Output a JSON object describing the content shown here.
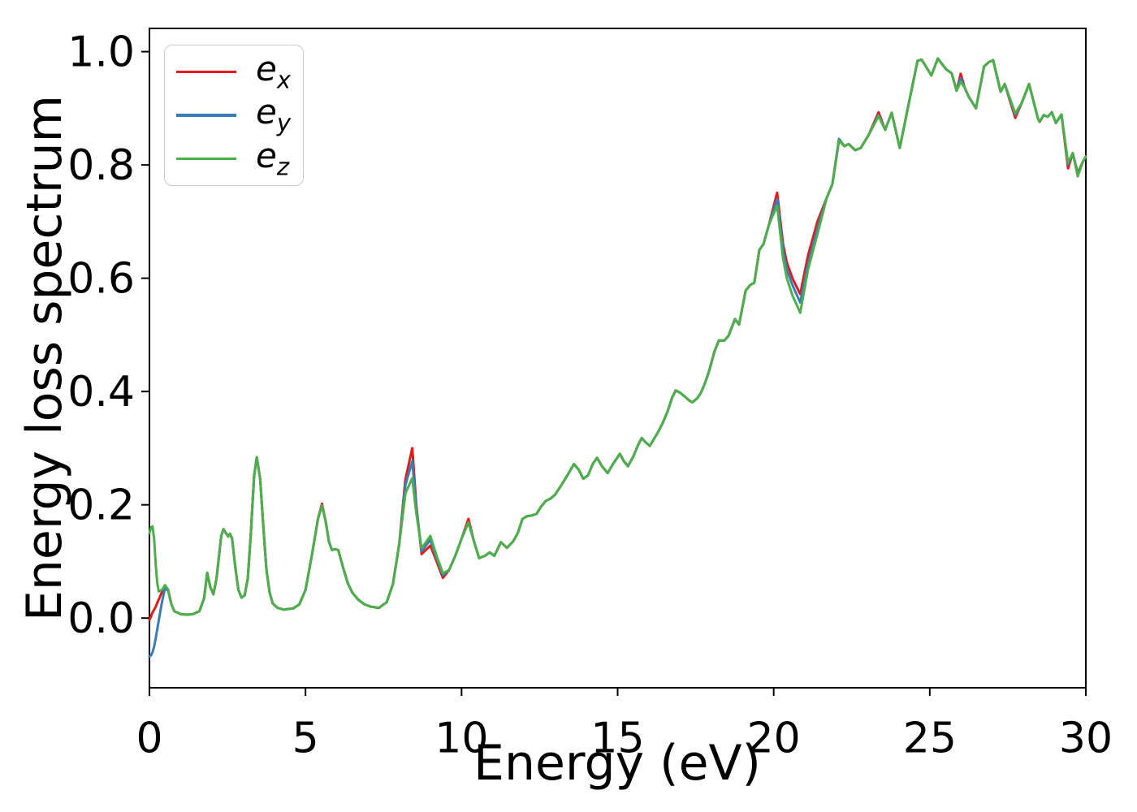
{
  "figure_title": "",
  "chart_data": {
    "type": "line",
    "title": "",
    "xlabel": "Energy (eV)",
    "ylabel": "Energy loss spectrum",
    "xlim": [
      0,
      30
    ],
    "ylim": [
      -0.123,
      1.041
    ],
    "x_ticks": [
      0,
      5,
      10,
      15,
      20,
      25,
      30
    ],
    "y_ticks": [
      0.0,
      0.2,
      0.4,
      0.6,
      0.8,
      1.0
    ],
    "grid": false,
    "legend": {
      "position": "upper-left",
      "entries": [
        {
          "name": "e_x",
          "base": "e",
          "sub": "x"
        },
        {
          "name": "e_y",
          "base": "e",
          "sub": "y"
        },
        {
          "name": "e_z",
          "base": "e",
          "sub": "z"
        }
      ]
    },
    "x": [
      0,
      0.05,
      0.1,
      0.15,
      0.2,
      0.25,
      0.3,
      0.4,
      0.5,
      0.6,
      0.7,
      0.8,
      1,
      1.2,
      1.4,
      1.6,
      1.75,
      1.85,
      1.95,
      2.05,
      2.15,
      2.3,
      2.37,
      2.45,
      2.52,
      2.58,
      2.65,
      2.75,
      2.85,
      2.95,
      3.05,
      3.15,
      3.25,
      3.35,
      3.44,
      3.55,
      3.65,
      3.75,
      3.85,
      3.95,
      4.1,
      4.3,
      4.6,
      4.8,
      5,
      5.2,
      5.4,
      5.53,
      5.65,
      5.75,
      5.85,
      5.95,
      6.05,
      6.2,
      6.35,
      6.5,
      6.7,
      6.9,
      7.1,
      7.35,
      7.6,
      7.8,
      8,
      8.2,
      8.42,
      8.55,
      8.72,
      9,
      9.2,
      9.4,
      9.6,
      9.8,
      10,
      10.22,
      10.4,
      10.56,
      10.75,
      10.9,
      11.05,
      11.26,
      11.45,
      11.65,
      11.8,
      11.95,
      12.1,
      12.25,
      12.4,
      12.55,
      12.7,
      12.85,
      13,
      13.2,
      13.4,
      13.6,
      13.75,
      13.9,
      14.05,
      14.2,
      14.34,
      14.5,
      14.68,
      14.85,
      15.07,
      15.2,
      15.33,
      15.5,
      15.65,
      15.77,
      15.9,
      16.03,
      16.15,
      16.29,
      16.45,
      16.6,
      16.75,
      16.86,
      17,
      17.15,
      17.3,
      17.4,
      17.55,
      17.67,
      17.8,
      17.93,
      18.1,
      18.24,
      18.42,
      18.55,
      18.76,
      18.89,
      19.1,
      19.25,
      19.38,
      19.54,
      19.67,
      19.85,
      20.11,
      20.3,
      20.42,
      20.6,
      20.85,
      21.1,
      21.4,
      21.7,
      21.88,
      22.09,
      22.27,
      22.4,
      22.61,
      22.79,
      23.05,
      23.36,
      23.57,
      23.78,
      24.04,
      24.3,
      24.61,
      24.74,
      25.05,
      25.26,
      25.52,
      25.7,
      25.86,
      25.99,
      26.12,
      26.25,
      26.48,
      26.74,
      26.9,
      27.03,
      27.27,
      27.4,
      27.74,
      27.95,
      28.18,
      28.47,
      28.52,
      28.65,
      28.78,
      28.91,
      29.04,
      29.22,
      29.43,
      29.58,
      29.74,
      29.9,
      30
    ],
    "series": [
      {
        "name": "e_x",
        "color": "#e41a1c",
        "values": [
          -0.003,
          0.003,
          0.01,
          0.015,
          0.02,
          0.027,
          0.033,
          0.046,
          0.058,
          0.05,
          0.025,
          0.012,
          0.007,
          0.006,
          0.007,
          0.012,
          0.035,
          0.08,
          0.055,
          0.042,
          0.07,
          0.145,
          0.157,
          0.15,
          0.144,
          0.149,
          0.14,
          0.09,
          0.05,
          0.036,
          0.04,
          0.07,
          0.15,
          0.25,
          0.284,
          0.245,
          0.16,
          0.085,
          0.045,
          0.026,
          0.018,
          0.015,
          0.017,
          0.024,
          0.05,
          0.11,
          0.175,
          0.202,
          0.17,
          0.135,
          0.12,
          0.122,
          0.12,
          0.09,
          0.062,
          0.045,
          0.032,
          0.024,
          0.02,
          0.018,
          0.028,
          0.06,
          0.13,
          0.245,
          0.3,
          0.2,
          0.113,
          0.128,
          0.1,
          0.071,
          0.085,
          0.11,
          0.14,
          0.175,
          0.135,
          0.106,
          0.11,
          0.116,
          0.11,
          0.134,
          0.124,
          0.135,
          0.15,
          0.175,
          0.18,
          0.181,
          0.184,
          0.197,
          0.207,
          0.211,
          0.218,
          0.235,
          0.253,
          0.272,
          0.262,
          0.246,
          0.252,
          0.272,
          0.283,
          0.268,
          0.256,
          0.272,
          0.29,
          0.277,
          0.268,
          0.285,
          0.305,
          0.318,
          0.31,
          0.304,
          0.315,
          0.328,
          0.345,
          0.365,
          0.39,
          0.402,
          0.398,
          0.391,
          0.384,
          0.381,
          0.388,
          0.398,
          0.415,
          0.436,
          0.47,
          0.49,
          0.49,
          0.498,
          0.528,
          0.518,
          0.578,
          0.588,
          0.592,
          0.65,
          0.66,
          0.695,
          0.751,
          0.66,
          0.628,
          0.6,
          0.572,
          0.64,
          0.7,
          0.742,
          0.766,
          0.843,
          0.833,
          0.837,
          0.826,
          0.83,
          0.854,
          0.893,
          0.862,
          0.892,
          0.83,
          0.901,
          0.984,
          0.986,
          0.958,
          0.988,
          0.969,
          0.962,
          0.931,
          0.961,
          0.936,
          0.92,
          0.9,
          0.974,
          0.982,
          0.985,
          0.929,
          0.943,
          0.883,
          0.91,
          0.943,
          0.881,
          0.876,
          0.888,
          0.885,
          0.893,
          0.874,
          0.889,
          0.794,
          0.821,
          0.786,
          0.805,
          0.815
        ]
      },
      {
        "name": "e_y",
        "color": "#377eb8",
        "values": [
          -0.068,
          -0.066,
          -0.06,
          -0.05,
          -0.036,
          -0.02,
          -0.004,
          0.028,
          0.053,
          0.048,
          0.025,
          0.012,
          0.007,
          0.006,
          0.007,
          0.012,
          0.035,
          0.08,
          0.055,
          0.042,
          0.07,
          0.145,
          0.157,
          0.15,
          0.144,
          0.149,
          0.14,
          0.09,
          0.05,
          0.036,
          0.04,
          0.07,
          0.15,
          0.25,
          0.284,
          0.245,
          0.16,
          0.085,
          0.045,
          0.026,
          0.018,
          0.015,
          0.017,
          0.024,
          0.05,
          0.11,
          0.175,
          0.199,
          0.17,
          0.135,
          0.12,
          0.122,
          0.12,
          0.09,
          0.062,
          0.045,
          0.032,
          0.024,
          0.02,
          0.018,
          0.028,
          0.06,
          0.13,
          0.235,
          0.277,
          0.195,
          0.118,
          0.138,
          0.105,
          0.076,
          0.085,
          0.11,
          0.14,
          0.169,
          0.135,
          0.106,
          0.11,
          0.116,
          0.11,
          0.134,
          0.124,
          0.135,
          0.15,
          0.175,
          0.18,
          0.181,
          0.184,
          0.197,
          0.207,
          0.211,
          0.218,
          0.235,
          0.253,
          0.272,
          0.262,
          0.246,
          0.252,
          0.272,
          0.283,
          0.268,
          0.256,
          0.272,
          0.29,
          0.277,
          0.268,
          0.285,
          0.305,
          0.318,
          0.31,
          0.304,
          0.315,
          0.328,
          0.345,
          0.365,
          0.39,
          0.402,
          0.398,
          0.391,
          0.384,
          0.381,
          0.388,
          0.398,
          0.415,
          0.436,
          0.47,
          0.49,
          0.49,
          0.498,
          0.528,
          0.518,
          0.578,
          0.588,
          0.592,
          0.65,
          0.66,
          0.695,
          0.74,
          0.65,
          0.615,
          0.588,
          0.557,
          0.625,
          0.688,
          0.742,
          0.766,
          0.846,
          0.833,
          0.837,
          0.826,
          0.83,
          0.854,
          0.888,
          0.862,
          0.892,
          0.83,
          0.901,
          0.984,
          0.986,
          0.958,
          0.988,
          0.969,
          0.962,
          0.931,
          0.953,
          0.936,
          0.92,
          0.9,
          0.974,
          0.982,
          0.985,
          0.929,
          0.943,
          0.888,
          0.91,
          0.943,
          0.881,
          0.876,
          0.888,
          0.885,
          0.893,
          0.874,
          0.889,
          0.801,
          0.821,
          0.784,
          0.805,
          0.815
        ]
      },
      {
        "name": "e_z",
        "color": "#4daf4a",
        "values": [
          0.15,
          0.16,
          0.162,
          0.14,
          0.095,
          0.062,
          0.047,
          0.05,
          0.058,
          0.05,
          0.025,
          0.012,
          0.007,
          0.006,
          0.007,
          0.012,
          0.035,
          0.08,
          0.055,
          0.042,
          0.07,
          0.145,
          0.157,
          0.15,
          0.144,
          0.149,
          0.14,
          0.09,
          0.05,
          0.036,
          0.04,
          0.07,
          0.15,
          0.25,
          0.284,
          0.245,
          0.16,
          0.085,
          0.045,
          0.026,
          0.018,
          0.015,
          0.017,
          0.024,
          0.05,
          0.11,
          0.175,
          0.199,
          0.17,
          0.135,
          0.12,
          0.122,
          0.12,
          0.09,
          0.062,
          0.045,
          0.032,
          0.024,
          0.02,
          0.018,
          0.028,
          0.06,
          0.13,
          0.22,
          0.247,
          0.185,
          0.123,
          0.145,
          0.11,
          0.079,
          0.085,
          0.11,
          0.14,
          0.169,
          0.135,
          0.106,
          0.11,
          0.116,
          0.11,
          0.134,
          0.124,
          0.135,
          0.15,
          0.175,
          0.18,
          0.181,
          0.184,
          0.197,
          0.207,
          0.211,
          0.218,
          0.235,
          0.253,
          0.272,
          0.262,
          0.246,
          0.252,
          0.272,
          0.283,
          0.268,
          0.256,
          0.272,
          0.29,
          0.277,
          0.268,
          0.285,
          0.305,
          0.318,
          0.31,
          0.304,
          0.315,
          0.328,
          0.345,
          0.365,
          0.39,
          0.402,
          0.398,
          0.391,
          0.384,
          0.381,
          0.388,
          0.398,
          0.415,
          0.436,
          0.47,
          0.49,
          0.49,
          0.498,
          0.528,
          0.518,
          0.578,
          0.588,
          0.592,
          0.65,
          0.66,
          0.695,
          0.728,
          0.635,
          0.6,
          0.57,
          0.539,
          0.615,
          0.678,
          0.742,
          0.766,
          0.843,
          0.833,
          0.837,
          0.826,
          0.83,
          0.854,
          0.886,
          0.862,
          0.892,
          0.83,
          0.901,
          0.984,
          0.986,
          0.958,
          0.988,
          0.969,
          0.962,
          0.931,
          0.947,
          0.936,
          0.92,
          0.9,
          0.974,
          0.982,
          0.985,
          0.929,
          0.943,
          0.891,
          0.91,
          0.943,
          0.881,
          0.876,
          0.888,
          0.885,
          0.893,
          0.874,
          0.889,
          0.804,
          0.821,
          0.78,
          0.805,
          0.815
        ]
      }
    ],
    "style": {
      "line_width": 3,
      "spine_color": "#000000",
      "background": "#ffffff",
      "tick_font_size": 52,
      "label_font_size": 60
    }
  }
}
